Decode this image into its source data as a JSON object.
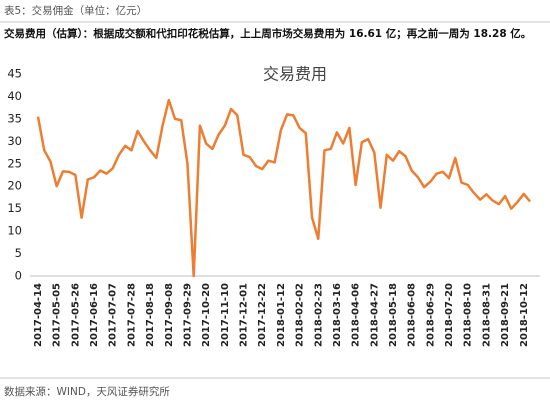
{
  "header": {
    "caption": "表5：交易佣金（单位：亿元）",
    "summary": "交易费用（估算）：根据成交额和代扣印花税估算，上上周市场交易费用为 16.61 亿；再之前一周为 18.28 亿。"
  },
  "chart_data": {
    "type": "line",
    "title": "交易费用",
    "color": "#ED7D31",
    "categories": [
      "2017-04-14",
      null,
      null,
      "2017-05-05",
      null,
      null,
      "2017-05-26",
      null,
      null,
      "2017-06-16",
      null,
      null,
      "2017-07-07",
      null,
      null,
      "2017-07-28",
      null,
      null,
      "2017-08-18",
      null,
      null,
      "2017-09-08",
      null,
      null,
      "2017-09-29",
      null,
      null,
      "2017-10-20",
      null,
      null,
      "2017-11-10",
      null,
      null,
      "2017-12-01",
      null,
      null,
      "2017-12-22",
      null,
      null,
      "2018-01-12",
      null,
      null,
      "2018-02-02",
      null,
      null,
      "2018-02-23",
      null,
      null,
      "2018-03-16",
      null,
      null,
      "2018-04-06",
      null,
      null,
      "2018-04-27",
      null,
      null,
      "2018-05-18",
      null,
      null,
      "2018-06-08",
      null,
      null,
      "2018-06-29",
      null,
      null,
      "2018-07-20",
      null,
      null,
      "2018-08-10",
      null,
      null,
      "2018-08-31",
      null,
      null,
      "2018-09-21",
      null,
      null,
      "2018-10-12",
      null
    ],
    "values": [
      35.5,
      28,
      25.5,
      20,
      23.3,
      23.2,
      22.5,
      13,
      21.5,
      22,
      23.5,
      22.8,
      24,
      27,
      29,
      28,
      32.3,
      30,
      28,
      26.3,
      33.5,
      39.2,
      35,
      34.7,
      25,
      0,
      33.5,
      29.5,
      28.3,
      31.5,
      33.5,
      37.2,
      35.8,
      27,
      26.5,
      24.5,
      23.8,
      25.7,
      25.3,
      32.5,
      36,
      35.8,
      33,
      31.8,
      13,
      8.3,
      28,
      28.3,
      32,
      29.5,
      33,
      20.3,
      29.8,
      30.5,
      27.5,
      15.2,
      27,
      25.7,
      27.8,
      26.7,
      23.5,
      22,
      19.8,
      21,
      22.8,
      23.2,
      21.8,
      26.3,
      20.8,
      20.3,
      18.5,
      17,
      18.2,
      16.8,
      16,
      17.8,
      15,
      16.5,
      18.28,
      16.61
    ],
    "ylim": [
      0,
      45
    ],
    "yticks": [
      0,
      5,
      10,
      15,
      20,
      25,
      30,
      35,
      40,
      45
    ],
    "grid": false
  },
  "footer": {
    "source": "数据来源：WIND，天风证券研究所"
  }
}
